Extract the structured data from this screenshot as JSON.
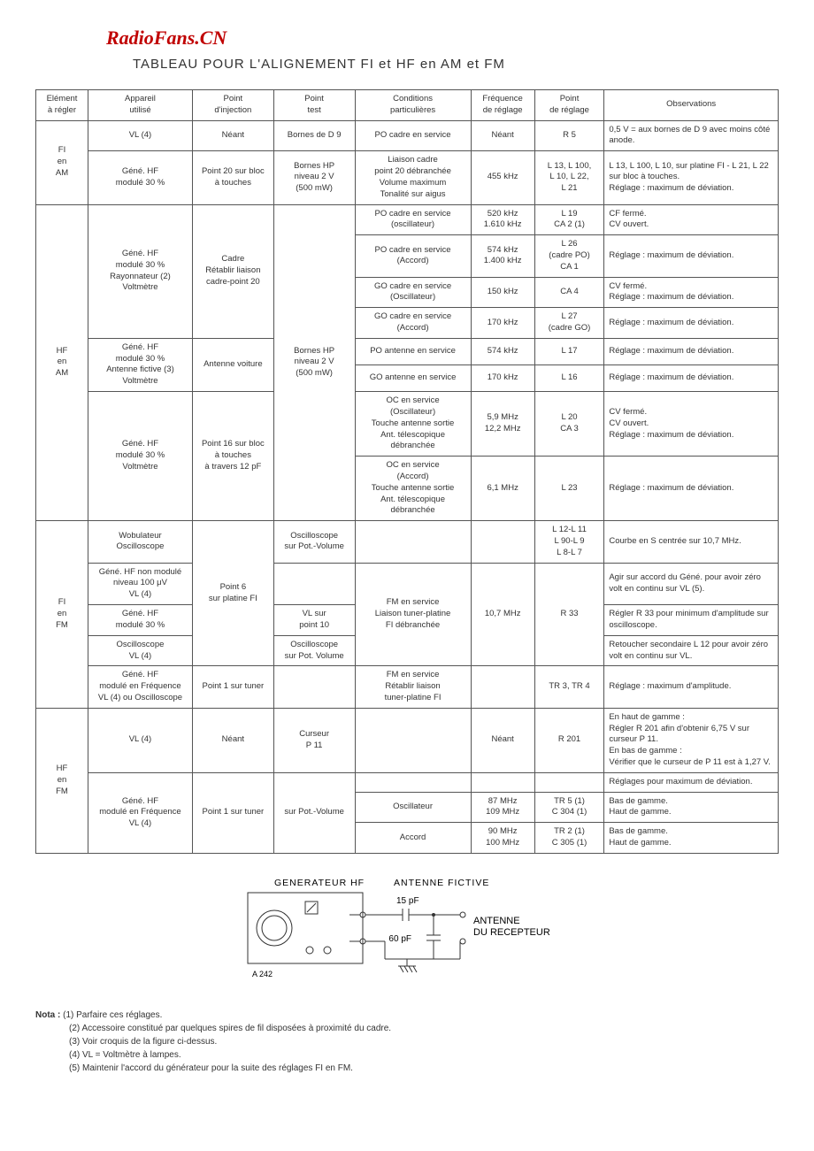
{
  "watermark": "RadioFans.CN",
  "title": "TABLEAU POUR L'ALIGNEMENT FI et HF en AM et FM",
  "headers": {
    "element": "Elément\nà régler",
    "app": "Appareil\nutilisé",
    "inj": "Point\nd'injection",
    "test": "Point\ntest",
    "cond": "Conditions\nparticulières",
    "freq": "Fréquence\nde réglage",
    "regl": "Point\nde réglage",
    "obs": "Observations"
  },
  "section_labels": {
    "fi_am": "FI\nen\nAM",
    "hf_am": "HF\nen\nAM",
    "fi_fm": "FI\nen\nFM",
    "hf_fm": "HF\nen\nFM"
  },
  "fi_am": {
    "r1": {
      "app": "VL (4)",
      "inj": "Néant",
      "test": "Bornes de D 9",
      "cond": "PO cadre en service",
      "freq": "Néant",
      "regl": "R 5",
      "obs": "0,5 V = aux bornes de D 9 avec moins côté anode."
    },
    "r2": {
      "app": "Géné. HF\nmodulé 30 %",
      "inj": "Point 20 sur bloc\nà touches",
      "test": "Bornes HP\nniveau 2 V\n(500 mW)",
      "cond": "Liaison cadre\npoint 20 débranchée\nVolume maximum\nTonalité sur aigus",
      "freq": "455 kHz",
      "regl": "L 13, L 100,\nL 10, L 22,\nL 21",
      "obs": "L 13, L 100, L 10, sur platine FI - L 21, L 22 sur bloc à touches.\nRéglage : maximum de déviation."
    }
  },
  "hf_am": {
    "g1": {
      "app": "Géné. HF\nmodulé 30 %\nRayonnateur (2)\nVoltmètre",
      "inj": "Cadre\nRétablir liaison\ncadre-point 20",
      "test_shared": "Bornes HP\nniveau 2 V\n(500 mW)",
      "rows": [
        {
          "cond": "PO cadre en service\n(oscillateur)",
          "freq": "520 kHz\n1.610 kHz",
          "regl": "L 19\nCA 2 (1)",
          "obs": "CF fermé.\nCV ouvert."
        },
        {
          "cond": "PO cadre en service\n(Accord)",
          "freq": "574 kHz\n1.400 kHz",
          "regl": "L 26\n(cadre PO)\nCA 1",
          "obs": "Réglage : maximum de déviation."
        },
        {
          "cond": "GO cadre en service\n(Oscillateur)",
          "freq": "150 kHz",
          "regl": "CA 4",
          "obs": "CV fermé.\nRéglage : maximum de déviation."
        },
        {
          "cond": "GO cadre en service\n(Accord)",
          "freq": "170 kHz",
          "regl": "L 27\n(cadre GO)",
          "obs": "Réglage : maximum de déviation."
        }
      ]
    },
    "g2": {
      "app": "Géné. HF\nmodulé 30 %\nAntenne fictive (3)\nVoltmètre",
      "inj": "Antenne voiture",
      "rows": [
        {
          "cond": "PO antenne en service",
          "freq": "574 kHz",
          "regl": "L 17",
          "obs": "Réglage : maximum de déviation."
        },
        {
          "cond": "GO antenne en service",
          "freq": "170 kHz",
          "regl": "L 16",
          "obs": "Réglage : maximum de déviation."
        }
      ]
    },
    "g3": {
      "app": "Géné. HF\nmodulé 30 %\nVoltmètre",
      "inj": "Point 16 sur bloc\nà touches\nà travers 12 pF",
      "rows": [
        {
          "cond": "OC en service\n(Oscillateur)\nTouche antenne sortie\nAnt. télescopique\ndébranchée",
          "freq": "5,9 MHz\n12,2 MHz",
          "regl": "L 20\nCA 3",
          "obs": "CV fermé.\nCV ouvert.\nRéglage : maximum de déviation."
        },
        {
          "cond": "OC en service\n(Accord)\nTouche antenne sortie\nAnt. télescopique\ndébranchée",
          "freq": "6,1 MHz",
          "regl": "L 23",
          "obs": "Réglage : maximum de déviation."
        }
      ]
    }
  },
  "fi_fm": {
    "inj_shared": "Point 6\nsur platine FI",
    "r1": {
      "app": "Wobulateur\nOscilloscope",
      "test": "Oscilloscope\nsur Pot.-Volume",
      "cond": "",
      "freq": "",
      "regl": "L 12-L 11\nL 90-L 9\nL 8-L 7",
      "obs": "Courbe en S centrée sur 10,7 MHz."
    },
    "r2": {
      "app": "Géné. HF non modulé\nniveau 100 μV\nVL (4)",
      "test": "",
      "cond_shared": "FM en service\nLiaison tuner-platine\nFI débranchée",
      "freq_shared": "10,7 MHz",
      "regl_shared": "R 33",
      "obs": "Agir sur accord du Géné. pour avoir zéro volt en continu sur VL (5)."
    },
    "r3": {
      "app": "Géné. HF\nmodulé 30 %",
      "test": "VL sur\npoint 10",
      "obs": "Régler R 33 pour minimum d'amplitude sur oscilloscope."
    },
    "r4": {
      "app": "Oscilloscope\nVL (4)",
      "test": "Oscilloscope\nsur Pot. Volume",
      "obs": "Retoucher secondaire L 12 pour avoir zéro volt en continu sur VL."
    },
    "r5": {
      "app": "Géné. HF\nmodulé en Fréquence\nVL (4) ou Oscilloscope",
      "inj": "Point 1 sur tuner",
      "test": "",
      "cond": "FM en service\nRétablir liaison\ntuner-platine FI",
      "freq": "",
      "regl": "TR 3, TR 4",
      "obs": "Réglage : maximum d'amplitude."
    }
  },
  "hf_fm": {
    "r1": {
      "app": "VL (4)",
      "inj": "Néant",
      "test": "Curseur\nP 11",
      "cond": "",
      "freq": "Néant",
      "regl": "R 201",
      "obs": "En haut de gamme :\nRégler R 201 afin d'obtenir 6,75 V sur curseur P 11.\nEn bas de gamme :\nVérifier que le curseur de P 11 est à 1,27 V."
    },
    "r2": {
      "app": "Géné. HF\nmodulé en Fréquence\nVL (4)",
      "inj": "Point 1 sur tuner",
      "test": "sur Pot.-Volume",
      "obs_top": "Réglages pour maximum de déviation.",
      "rows": [
        {
          "cond": "Oscillateur",
          "freq": "87 MHz\n109 MHz",
          "regl": "TR 5 (1)\nC 304 (1)",
          "obs": "Bas de gamme.\nHaut de gamme."
        },
        {
          "cond": "Accord",
          "freq": "90 MHz\n100 MHz",
          "regl": "TR 2 (1)\nC 305 (1)",
          "obs": "Bas de gamme.\nHaut de gamme."
        }
      ]
    }
  },
  "diagram": {
    "gen_label": "GENERATEUR HF",
    "fictive_label": "ANTENNE FICTIVE",
    "cap1": "15 pF",
    "cap2": "60 pF",
    "antenna_label": "ANTENNE\nDU RECEPTEUR",
    "model": "A 242"
  },
  "notes": {
    "nota": "Nota :",
    "n1": "(1) Parfaire ces réglages.",
    "n2": "(2) Accessoire constitué par quelques spires de fil disposées à proximité du cadre.",
    "n3": "(3) Voir croquis de la figure ci-dessus.",
    "n4": "(4) VL = Voltmètre à lampes.",
    "n5": "(5) Maintenir l'accord du générateur pour la suite des réglages FI en FM."
  }
}
